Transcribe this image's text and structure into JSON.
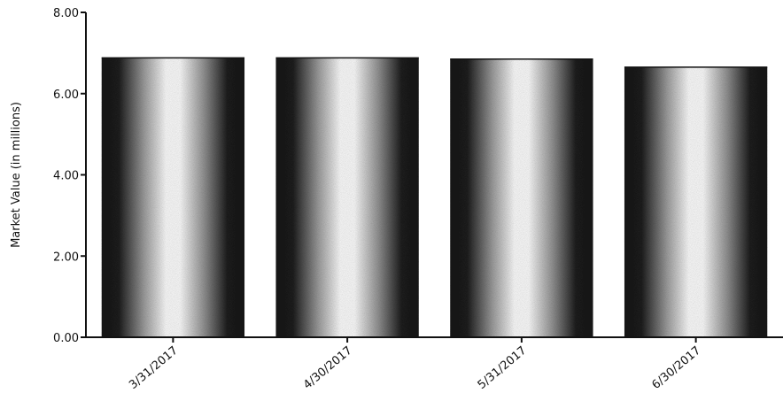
{
  "chart_data": {
    "type": "bar",
    "title": "",
    "xlabel": "",
    "ylabel": "Market Value (in millions)",
    "categories": [
      "3/31/2017",
      "4/30/2017",
      "5/31/2017",
      "6/30/2017"
    ],
    "values": [
      6.88,
      6.88,
      6.85,
      6.65
    ],
    "ylim": [
      0,
      8
    ],
    "yticks": [
      "0.00",
      "2.00",
      "4.00",
      "6.00",
      "8.00"
    ],
    "ytick_values": [
      0,
      2,
      4,
      6,
      8
    ],
    "grid": false,
    "bar_fill": "gradient dark-light-dark",
    "bar_color_dark": "#1a1a1a",
    "bar_color_light": "#ffffff"
  }
}
